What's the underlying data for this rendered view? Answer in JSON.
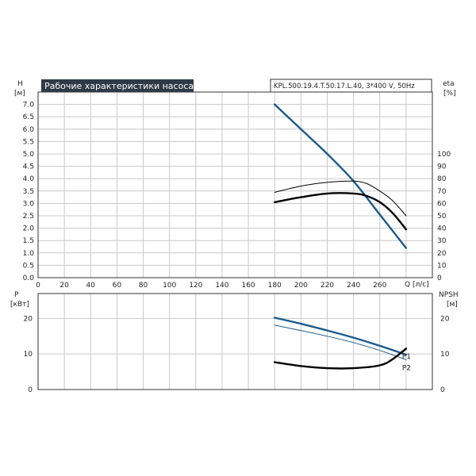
{
  "chart_data": [
    {
      "type": "line",
      "title": "Рабочие характеристики насоса",
      "model_label": "KPL.500.19.4.T.50.17.L.40, 3*400 V, 50Hz",
      "xlabel": "Q [л/с]",
      "ylabel": "H",
      "ylabel_unit": "[м]",
      "y2label": "eta",
      "y2label_unit": "[%]",
      "xlim": [
        0,
        300
      ],
      "ylim": [
        0,
        7.5
      ],
      "y2lim": [
        0,
        150
      ],
      "xticks": [
        "0",
        "20",
        "40",
        "60",
        "80",
        "100",
        "120",
        "140",
        "160",
        "180",
        "200",
        "220",
        "240",
        "260"
      ],
      "yticks": [
        "0.0",
        "0.5",
        "1.0",
        "1.5",
        "2.0",
        "2.5",
        "3.0",
        "3.5",
        "4.0",
        "4.5",
        "5.0",
        "5.5",
        "6.0",
        "6.5",
        "7.0"
      ],
      "y2ticks": [
        "0",
        "10",
        "20",
        "30",
        "40",
        "50",
        "60",
        "70",
        "80",
        "90",
        "100"
      ],
      "series": [
        {
          "name": "H",
          "axis": "left",
          "color": "#1a5a8e",
          "width": 2.4,
          "x": [
            180,
            200,
            220,
            240,
            260,
            280
          ],
          "y": [
            7.0,
            6.0,
            5.0,
            3.9,
            2.55,
            1.2
          ]
        },
        {
          "name": "eta1",
          "axis": "right",
          "color": "#000000",
          "width": 1.0,
          "x": [
            180,
            200,
            220,
            240,
            250,
            260,
            270,
            280
          ],
          "y": [
            69,
            74,
            77,
            78,
            76,
            70,
            62,
            50
          ]
        },
        {
          "name": "eta2",
          "axis": "right",
          "color": "#000000",
          "width": 2.4,
          "x": [
            180,
            200,
            220,
            240,
            250,
            260,
            270,
            280
          ],
          "y": [
            61,
            65,
            68,
            68,
            66,
            61,
            52,
            39
          ]
        }
      ]
    },
    {
      "type": "line",
      "ylabel": "P",
      "ylabel_unit": "[кВт]",
      "y2label": "NPSH",
      "y2label_unit": "[м]",
      "xlim": [
        0,
        300
      ],
      "ylim": [
        0,
        27
      ],
      "y2lim": [
        0,
        27
      ],
      "yticks": [
        "0",
        "10",
        "20"
      ],
      "y2ticks": [
        "0",
        "10",
        "20"
      ],
      "series": [
        {
          "name": "P1",
          "axis": "left",
          "color": "#1a5a8e",
          "width": 2.4,
          "label": "P1",
          "x": [
            180,
            200,
            220,
            240,
            260,
            280
          ],
          "y": [
            20.2,
            18.5,
            16.6,
            14.6,
            12.3,
            9.8
          ]
        },
        {
          "name": "P2",
          "axis": "left",
          "color": "#1a5a8e",
          "width": 1.0,
          "label": "P2",
          "x": [
            180,
            200,
            220,
            240,
            260,
            280
          ],
          "y": [
            18.1,
            16.6,
            15.0,
            13.2,
            11.0,
            8.4
          ]
        },
        {
          "name": "NPSH",
          "axis": "right",
          "color": "#000000",
          "width": 2.4,
          "x": [
            180,
            200,
            220,
            240,
            260,
            270,
            280
          ],
          "y": [
            7.7,
            6.6,
            6.0,
            6.0,
            6.8,
            8.6,
            11.5
          ]
        }
      ]
    }
  ]
}
